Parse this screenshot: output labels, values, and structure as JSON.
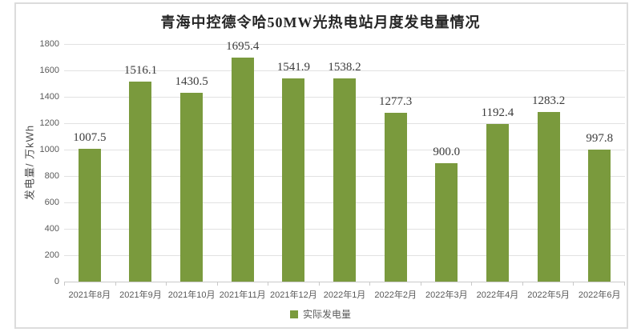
{
  "colors": {
    "bar": "#7A9A3D",
    "grid": "#E2E2E2",
    "axis_line": "#C9C9C9",
    "frame_border": "#DCDCDC",
    "axis_text": "#595959",
    "value_text": "#3B3B3B",
    "title_text": "#262626"
  },
  "y_axis": {
    "label": "发电量/ 万kWh",
    "ticks": [
      0,
      200,
      400,
      600,
      800,
      1000,
      1200,
      1400,
      1600,
      1800
    ]
  },
  "legend": {
    "label": "实际发电量"
  },
  "chart_data": {
    "type": "bar",
    "title": "青海中控德令哈50MW光热电站月度发电量情况",
    "categories": [
      "2021年8月",
      "2021年9月",
      "2021年10月",
      "2021年11月",
      "2021年12月",
      "2022年1月",
      "2022年2月",
      "2022年3月",
      "2022年4月",
      "2022年5月",
      "2022年6月"
    ],
    "series": [
      {
        "name": "实际发电量",
        "values": [
          1007.5,
          1516.1,
          1430.5,
          1695.4,
          1541.9,
          1538.2,
          1277.3,
          900.0,
          1192.4,
          1283.2,
          997.8
        ],
        "labels": [
          "1007.5",
          "1516.1",
          "1430.5",
          "1695.4",
          "1541.9",
          "1538.2",
          "1277.3",
          "900.0",
          "1192.4",
          "1283.2",
          "997.8"
        ],
        "color": "#7A9A3D"
      }
    ],
    "xlabel": "",
    "ylabel": "发电量/ 万kWh",
    "ylim": [
      0,
      1800
    ],
    "ytick_step": 200,
    "grid": true,
    "data_labels": true,
    "legend_position": "bottom"
  }
}
